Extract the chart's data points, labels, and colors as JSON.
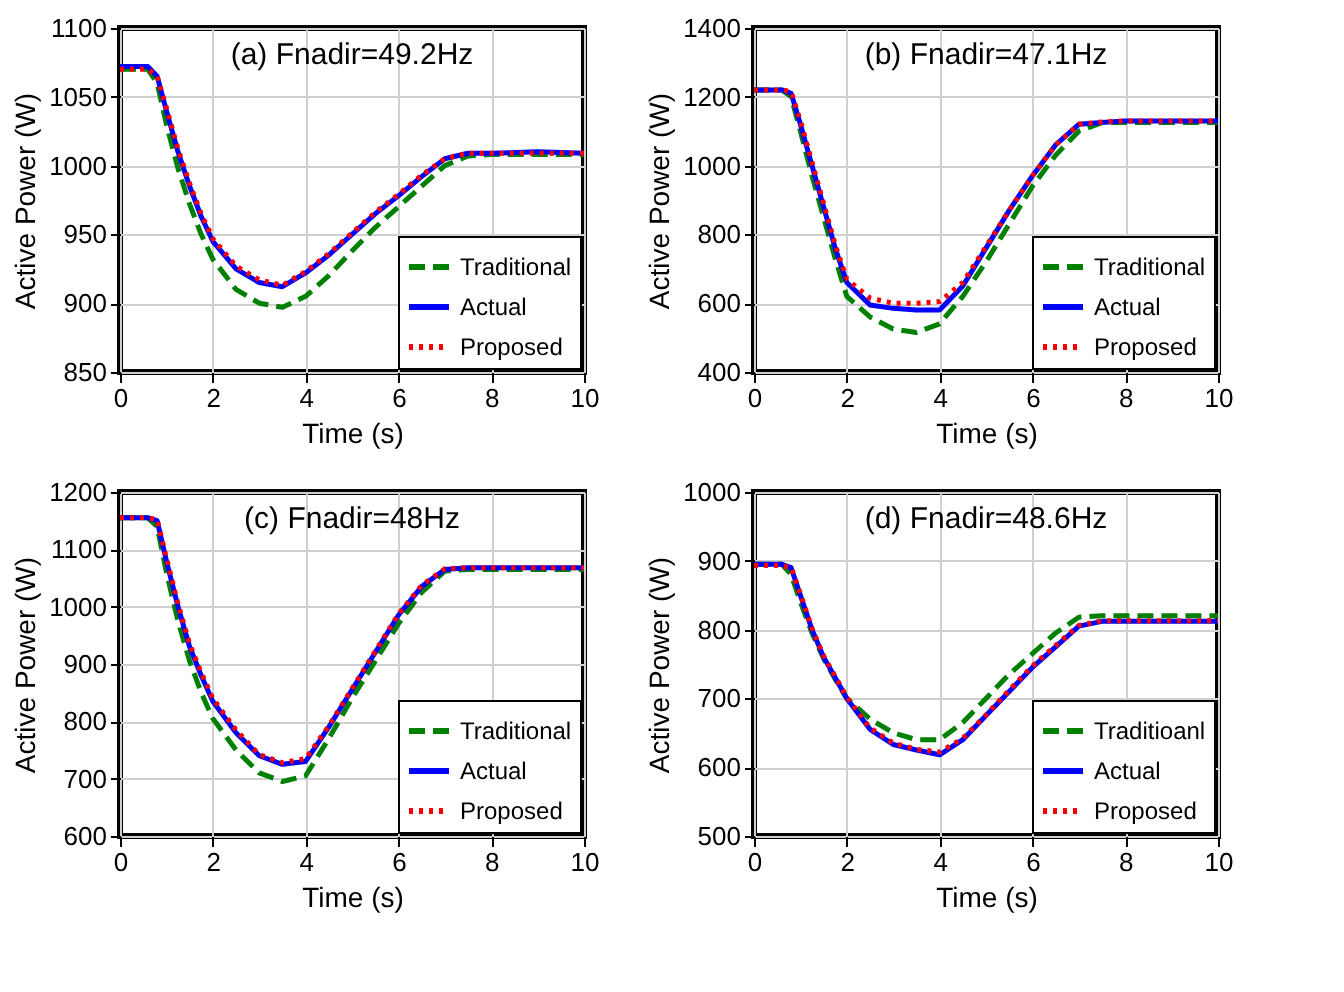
{
  "chart_data": [
    {
      "type": "line",
      "title": "(a) Fnadir=49.2Hz",
      "xlabel": "Time (s)",
      "ylabel": "Active Power (W)",
      "x": [
        0,
        0.6,
        0.8,
        1,
        1.25,
        1.5,
        1.75,
        2,
        2.5,
        3,
        3.5,
        4,
        4.5,
        5,
        5.5,
        6,
        6.5,
        7,
        7.5,
        8,
        9,
        10
      ],
      "series": [
        {
          "name": "Traditional",
          "color": "#008000",
          "line_style": "dashed",
          "values": [
            1070,
            1070,
            1060,
            1030,
            998,
            972,
            950,
            932,
            910,
            900,
            897,
            905,
            920,
            938,
            955,
            970,
            985,
            1000,
            1007,
            1008,
            1008,
            1008
          ]
        },
        {
          "name": "Actual",
          "color": "#0000ff",
          "line_style": "solid",
          "values": [
            1072,
            1072,
            1065,
            1040,
            1010,
            985,
            963,
            945,
            925,
            915,
            912,
            922,
            935,
            950,
            965,
            978,
            992,
            1005,
            1009,
            1009,
            1010,
            1009
          ]
        },
        {
          "name": "Proposed",
          "color": "#ff0000",
          "line_style": "dotted",
          "values": [
            1070,
            1070,
            1065,
            1042,
            1012,
            987,
            965,
            947,
            927,
            917,
            913,
            923,
            936,
            951,
            966,
            979,
            993,
            1005,
            1009,
            1009,
            1009,
            1009
          ]
        }
      ],
      "xlim": [
        0,
        10
      ],
      "xticks": [
        0,
        2,
        4,
        6,
        8,
        10
      ],
      "ylim": [
        850,
        1100
      ],
      "yticks": [
        850,
        900,
        950,
        1000,
        1050,
        1100
      ],
      "grid": true,
      "legend": "bottom right"
    },
    {
      "type": "line",
      "title": "(b) Fnadir=47.1Hz",
      "xlabel": "Time (s)",
      "ylabel": "Active Power (W)",
      "x": [
        0,
        0.6,
        0.8,
        1,
        1.25,
        1.5,
        1.75,
        2,
        2.5,
        3,
        3.5,
        4,
        4.5,
        5,
        5.5,
        6,
        6.5,
        7,
        7.5,
        8,
        9,
        10
      ],
      "series": [
        {
          "name": "Traditional",
          "color": "#008000",
          "line_style": "dashed",
          "values": [
            1220,
            1220,
            1200,
            1100,
            970,
            850,
            730,
            620,
            560,
            525,
            515,
            540,
            620,
            720,
            830,
            940,
            1030,
            1100,
            1125,
            1125,
            1125,
            1125
          ]
        },
        {
          "name": "Actual",
          "color": "#0000ff",
          "line_style": "solid",
          "values": [
            1220,
            1220,
            1210,
            1120,
            1000,
            880,
            760,
            660,
            595,
            585,
            580,
            580,
            650,
            760,
            870,
            970,
            1060,
            1120,
            1125,
            1130,
            1130,
            1130
          ]
        },
        {
          "name": "Proposed",
          "color": "#ff0000",
          "line_style": "dotted",
          "values": [
            1220,
            1220,
            1215,
            1130,
            1010,
            890,
            770,
            670,
            615,
            600,
            600,
            605,
            660,
            765,
            870,
            970,
            1060,
            1120,
            1127,
            1130,
            1130,
            1130
          ]
        }
      ],
      "xlim": [
        0,
        10
      ],
      "xticks": [
        0,
        2,
        4,
        6,
        8,
        10
      ],
      "ylim": [
        400,
        1400
      ],
      "yticks": [
        400,
        600,
        800,
        1000,
        1200,
        1400
      ],
      "grid": true,
      "legend": "bottom right"
    },
    {
      "type": "line",
      "title": "(c) Fnadir=48Hz",
      "xlabel": "Time (s)",
      "ylabel": "Active Power (W)",
      "x": [
        0,
        0.6,
        0.8,
        1,
        1.25,
        1.5,
        1.75,
        2,
        2.5,
        3,
        3.5,
        4,
        4.5,
        5,
        5.5,
        6,
        6.5,
        7,
        7.5,
        8,
        9,
        10
      ],
      "series": [
        {
          "name": "Traditional",
          "color": "#008000",
          "line_style": "dashed",
          "values": [
            1155,
            1155,
            1140,
            1060,
            975,
            905,
            850,
            805,
            750,
            710,
            695,
            705,
            770,
            840,
            905,
            970,
            1025,
            1062,
            1065,
            1065,
            1065,
            1065
          ]
        },
        {
          "name": "Actual",
          "color": "#0000ff",
          "line_style": "solid",
          "values": [
            1155,
            1155,
            1150,
            1080,
            1000,
            930,
            880,
            835,
            780,
            740,
            725,
            730,
            790,
            855,
            920,
            985,
            1035,
            1065,
            1068,
            1068,
            1068,
            1068
          ]
        },
        {
          "name": "Proposed",
          "color": "#ff0000",
          "line_style": "dotted",
          "values": [
            1155,
            1155,
            1152,
            1085,
            1005,
            935,
            885,
            840,
            785,
            742,
            728,
            735,
            792,
            857,
            922,
            987,
            1037,
            1066,
            1068,
            1068,
            1068,
            1068
          ]
        }
      ],
      "xlim": [
        0,
        10
      ],
      "xticks": [
        0,
        2,
        4,
        6,
        8,
        10
      ],
      "ylim": [
        600,
        1200
      ],
      "yticks": [
        600,
        700,
        800,
        900,
        1000,
        1100,
        1200
      ],
      "grid": true,
      "legend": "bottom right"
    },
    {
      "type": "line",
      "title": "(d) Fnadir=48.6Hz",
      "xlabel": "Time (s)",
      "ylabel": "Active Power (W)",
      "x": [
        0,
        0.6,
        0.8,
        1,
        1.25,
        1.5,
        1.75,
        2,
        2.5,
        3,
        3.5,
        4,
        4.5,
        5,
        5.5,
        6,
        6.5,
        7,
        7.5,
        8,
        9,
        10
      ],
      "series": [
        {
          "name": "Traditioanl",
          "color": "#008000",
          "line_style": "dashed",
          "values": [
            895,
            895,
            880,
            840,
            795,
            758,
            728,
            700,
            670,
            650,
            640,
            640,
            665,
            700,
            735,
            765,
            795,
            818,
            820,
            820,
            820,
            820
          ]
        },
        {
          "name": "Actual",
          "color": "#0000ff",
          "line_style": "solid",
          "values": [
            895,
            895,
            890,
            850,
            800,
            760,
            730,
            700,
            655,
            633,
            625,
            618,
            640,
            675,
            710,
            745,
            775,
            805,
            812,
            812,
            812,
            812
          ]
        },
        {
          "name": "Proposed",
          "color": "#ff0000",
          "line_style": "dotted",
          "values": [
            893,
            893,
            890,
            852,
            802,
            762,
            732,
            702,
            657,
            635,
            626,
            622,
            642,
            676,
            712,
            747,
            777,
            806,
            813,
            813,
            813,
            813
          ]
        }
      ],
      "xlim": [
        0,
        10
      ],
      "xticks": [
        0,
        2,
        4,
        6,
        8,
        10
      ],
      "ylim": [
        500,
        1000
      ],
      "yticks": [
        500,
        600,
        700,
        800,
        900,
        1000
      ],
      "grid": true,
      "legend": "bottom right"
    }
  ]
}
